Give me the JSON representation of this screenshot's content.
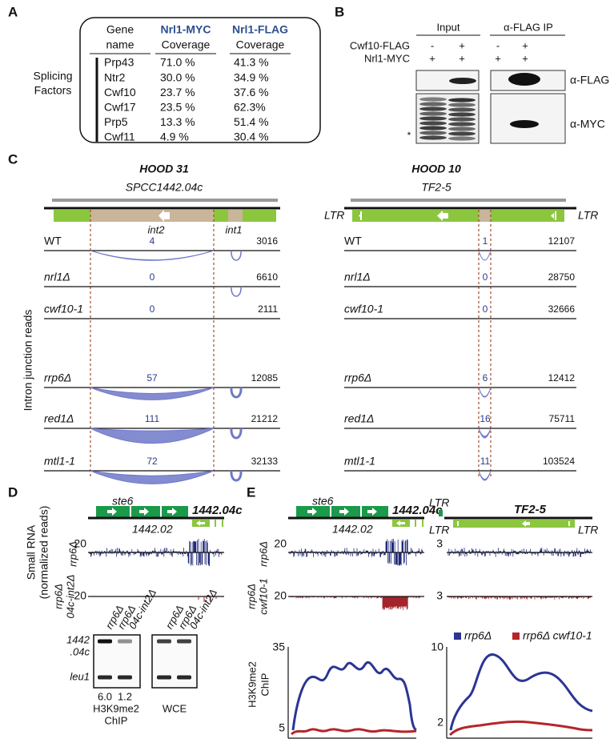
{
  "panel_labels": [
    "A",
    "B",
    "C",
    "D",
    "E"
  ],
  "panel_a": {
    "columns": [
      [
        "Gene",
        "name"
      ],
      [
        "Nrl1-MYC",
        "Coverage"
      ],
      [
        "Nrl1-FLAG",
        "Coverage"
      ]
    ],
    "group_label": [
      "Splicing",
      "Factors"
    ],
    "rows": [
      [
        "Prp43",
        "71.0 %",
        "41.3 %"
      ],
      [
        "Ntr2",
        "30.0 %",
        "34.9 %"
      ],
      [
        "Cwf10",
        "23.7 %",
        "37.6 %"
      ],
      [
        "Cwf17",
        "23.5 %",
        "62.3%"
      ],
      [
        "Prp5",
        "13.3 %",
        "51.4 %"
      ],
      [
        "Cwf11",
        "4.9 %",
        "30.4 %"
      ]
    ]
  },
  "panel_b": {
    "groups": [
      "Input",
      "α-FLAG IP"
    ],
    "row_labels": [
      "Cwf10-FLAG",
      "Nrl1-MYC"
    ],
    "signs": [
      [
        "-",
        "+",
        "-",
        "+"
      ],
      [
        "+",
        "+",
        "+",
        "+"
      ]
    ],
    "blot_labels": [
      "α-FLAG",
      "α-MYC"
    ],
    "marker": "*"
  },
  "panel_c": {
    "y_label": "Intron junction reads",
    "loci": [
      {
        "title": "HOOD 31",
        "gene": "SPCC1442.04c",
        "features": [
          "int2",
          "int1"
        ],
        "strains": [
          {
            "name": "WT",
            "junction": 4,
            "total": 3016
          },
          {
            "name": "nrl1Δ",
            "junction": 0,
            "total": 6610
          },
          {
            "name": "cwf10-1",
            "junction": 0,
            "total": 2111
          },
          {
            "name": "rrp6Δ",
            "junction": 57,
            "total": 12085
          },
          {
            "name": "red1Δ",
            "junction": 111,
            "total": 21212
          },
          {
            "name": "mtl1-1",
            "junction": 72,
            "total": 32133
          }
        ]
      },
      {
        "title": "HOOD 10",
        "gene": "TF2-5",
        "features": [
          "LTR",
          "LTR"
        ],
        "strains": [
          {
            "name": "WT",
            "junction": 1,
            "total": 12107
          },
          {
            "name": "nrl1Δ",
            "junction": 0,
            "total": 28750
          },
          {
            "name": "cwf10-1",
            "junction": 0,
            "total": 32666
          },
          {
            "name": "rrp6Δ",
            "junction": 6,
            "total": 12412
          },
          {
            "name": "red1Δ",
            "junction": 16,
            "total": 75711
          },
          {
            "name": "mtl1-1",
            "junction": 11,
            "total": 103524
          }
        ]
      }
    ]
  },
  "panel_d": {
    "genes": [
      "ste6",
      "1442.04c",
      "1442.02"
    ],
    "y_label": [
      "Small RNA",
      "(normalized reads)"
    ],
    "track_labels": [
      [
        "rrp6Δ"
      ],
      [
        "rrp6Δ",
        "04c-int2Δ"
      ]
    ],
    "track_ticks": [
      20,
      20
    ],
    "gel": {
      "lane_labels": [
        [
          "rrp6Δ"
        ],
        [
          "rrp6Δ",
          "04c-int2Δ"
        ],
        [
          "rrp6Δ"
        ],
        [
          "rrp6Δ",
          "04c-int2Δ"
        ]
      ],
      "band_labels": [
        [
          "1442",
          ".04c"
        ],
        [
          "leu1"
        ]
      ],
      "quant": [
        "6.0",
        "1.2"
      ],
      "captions": [
        [
          "H3K9me2",
          "ChIP"
        ],
        [
          "WCE"
        ]
      ]
    }
  },
  "panel_e": {
    "genes_left": [
      "ste6",
      "1442.04c",
      "1442.02"
    ],
    "genes_right": [
      "LTR",
      "TF2-5",
      "LTR",
      "LTR"
    ],
    "track_labels": [
      [
        "rrp6Δ"
      ],
      [
        "rrp6Δ",
        "cwf10-1"
      ]
    ],
    "track_ticks_left": [
      20,
      20
    ],
    "track_ticks_right": [
      3,
      3
    ],
    "legend": [
      {
        "name": "rrp6Δ",
        "color": "#2b3595"
      },
      {
        "name": "rrp6Δ cwf10-1",
        "color": "#b5252a"
      }
    ],
    "chip_label": [
      "H3K9me2",
      "ChIP"
    ],
    "chip_ticks_left": [
      35,
      5
    ],
    "chip_ticks_right": [
      10,
      2
    ]
  }
}
